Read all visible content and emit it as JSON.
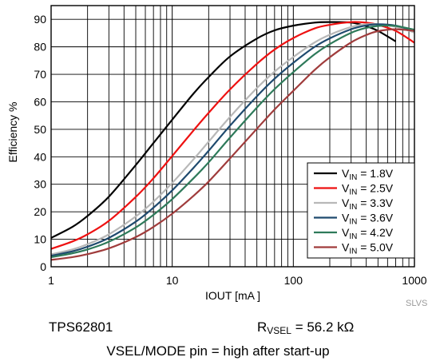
{
  "chart_data": {
    "type": "line",
    "xlabel": "IOUT [mA ]",
    "ylabel": "Efficiency %",
    "x_scale": "log",
    "xlim": [
      1,
      1000
    ],
    "ylim": [
      0,
      95
    ],
    "x_ticks": [
      1,
      10,
      100,
      1000
    ],
    "x_tick_labels": [
      "1",
      "10",
      "100",
      "1000"
    ],
    "y_ticks": [
      0,
      10,
      20,
      30,
      40,
      50,
      60,
      70,
      80,
      90
    ],
    "y_tick_labels": [
      "0",
      "10",
      "20",
      "30",
      "40",
      "50",
      "60",
      "70",
      "80",
      "90"
    ],
    "grid": true,
    "legend_position": "bottom-right",
    "series": [
      {
        "name": "1.8V",
        "color": "#000000",
        "x": [
          1,
          1.5,
          2,
          3,
          5,
          7,
          10,
          15,
          20,
          30,
          50,
          70,
          100,
          150,
          200,
          300,
          400,
          500,
          700
        ],
        "y": [
          10.5,
          14.5,
          18.5,
          25.5,
          37,
          45,
          53.5,
          63,
          69,
          76.5,
          83,
          86,
          87.7,
          88.8,
          89,
          88.8,
          87.5,
          85.8,
          82
        ]
      },
      {
        "name": "2.5V",
        "color": "#ee1111",
        "x": [
          1,
          1.5,
          2,
          3,
          5,
          7,
          10,
          15,
          20,
          30,
          50,
          70,
          100,
          150,
          200,
          300,
          400,
          500,
          700,
          1000
        ],
        "y": [
          6.5,
          9.2,
          11.8,
          16.7,
          25.4,
          32.2,
          40.3,
          49.6,
          56,
          64.5,
          73.8,
          79,
          83.2,
          86.7,
          88,
          89,
          88.8,
          88,
          85.8,
          81.5
        ]
      },
      {
        "name": "3.3V",
        "color": "#b8b8b8",
        "x": [
          1,
          1.5,
          2,
          3,
          5,
          7,
          10,
          15,
          20,
          30,
          50,
          70,
          100,
          150,
          200,
          300,
          400,
          500,
          700,
          1000
        ],
        "y": [
          4.5,
          6.3,
          8.2,
          11.8,
          18.3,
          23.7,
          30.5,
          39.1,
          45.5,
          54.5,
          65,
          71,
          76.3,
          81.6,
          84.4,
          87.2,
          88.2,
          88.2,
          87.3,
          85.2
        ]
      },
      {
        "name": "3.6V",
        "color": "#1f4a6e",
        "x": [
          1,
          1.5,
          2,
          3,
          5,
          7,
          10,
          15,
          20,
          30,
          50,
          70,
          100,
          150,
          200,
          300,
          400,
          500,
          700,
          1000
        ],
        "y": [
          4,
          5.6,
          7.3,
          10.5,
          16.4,
          21.5,
          27.8,
          36,
          42.2,
          51.3,
          62,
          68.4,
          74.2,
          80,
          83.1,
          86.4,
          87.8,
          88.2,
          87.7,
          85.8
        ]
      },
      {
        "name": "4.2V",
        "color": "#2e7a5a",
        "x": [
          1,
          1.5,
          2,
          3,
          5,
          7,
          10,
          15,
          20,
          30,
          50,
          70,
          100,
          150,
          200,
          300,
          400,
          500,
          700,
          1000
        ],
        "y": [
          3.5,
          4.9,
          6.3,
          9.1,
          14.3,
          18.9,
          24.6,
          32.2,
          38,
          47,
          57.9,
          64.6,
          70.8,
          77.3,
          81,
          85.1,
          86.9,
          87.6,
          87.6,
          86.2
        ]
      },
      {
        "name": "5.0V",
        "color": "#a03c3c",
        "x": [
          1,
          1.5,
          2,
          3,
          5,
          7,
          10,
          15,
          20,
          30,
          50,
          70,
          100,
          150,
          200,
          300,
          400,
          500,
          700,
          1000
        ],
        "y": [
          2.5,
          3.5,
          4.6,
          6.7,
          10.8,
          14.5,
          19.3,
          25.8,
          31,
          39.4,
          50.2,
          57.2,
          64,
          71.6,
          76.2,
          81.6,
          84.3,
          85.7,
          86.4,
          85.8
        ]
      }
    ]
  },
  "legend_prefix_main": "V",
  "legend_prefix_sub": "IN",
  "legend_eq": " = ",
  "watermark": "SLVS",
  "caption": {
    "device": "TPS62801",
    "r_main": "R",
    "r_sub": "VSEL",
    "r_value": " = 56.2 kΩ",
    "mode": "VSEL/MODE pin = high after start-up"
  }
}
